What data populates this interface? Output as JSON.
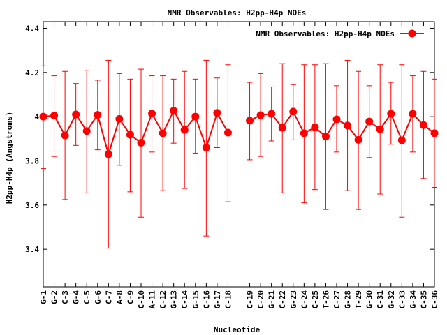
{
  "chart_data": {
    "type": "line",
    "title": "NMR Observables: H2pp-H4p NOEs",
    "xlabel": "Nucleotide",
    "ylabel": "H2pp-H4p (Angstroms)",
    "ylim": [
      3.23,
      4.43
    ],
    "yticks": [
      "3.4",
      "3.6",
      "3.8",
      "4",
      "4.2",
      "4.4"
    ],
    "grid": false,
    "legend_position": "top-right",
    "series_color": "#ff0000",
    "series": [
      {
        "name": "NMR Observables: H2pp-H4p NOEs",
        "segments": [
          {
            "categories": [
              "G-1",
              "G-2",
              "C-3",
              "G-4",
              "C-5",
              "G-6",
              "C-7",
              "A-8",
              "C-9",
              "C-10",
              "A-11",
              "C-12",
              "G-13",
              "C-14",
              "G-15",
              "C-16",
              "G-17",
              "C-18"
            ],
            "values": [
              4.0,
              4.005,
              3.915,
              4.01,
              3.935,
              4.008,
              3.83,
              3.99,
              3.918,
              3.882,
              4.014,
              3.925,
              4.027,
              3.94,
              4.0,
              3.86,
              4.017,
              3.928
            ],
            "err_low": [
              3.765,
              3.82,
              3.625,
              3.87,
              3.655,
              3.85,
              3.405,
              3.78,
              3.66,
              3.545,
              3.84,
              3.665,
              3.88,
              3.675,
              3.835,
              3.46,
              3.86,
              3.615
            ],
            "err_high": [
              4.23,
              4.185,
              4.205,
              4.15,
              4.21,
              4.165,
              4.255,
              4.195,
              4.17,
              4.215,
              4.185,
              4.185,
              4.17,
              4.205,
              4.17,
              4.255,
              4.175,
              4.235
            ]
          },
          {
            "categories": [
              "C-19",
              "C-20",
              "G-21",
              "C-22",
              "G-23",
              "C-24",
              "C-25",
              "T-26",
              "C-27",
              "G-28",
              "T-29",
              "G-30",
              "C-31",
              "G-32",
              "C-33",
              "G-34",
              "C-35",
              "C-36"
            ],
            "values": [
              3.982,
              4.007,
              4.013,
              3.95,
              4.023,
              3.925,
              3.952,
              3.91,
              3.988,
              3.96,
              3.895,
              3.978,
              3.943,
              4.013,
              3.893,
              4.013,
              3.962,
              3.925
            ],
            "err_low": [
              3.805,
              3.82,
              3.89,
              3.655,
              3.895,
              3.61,
              3.67,
              3.58,
              3.84,
              3.665,
              3.58,
              3.815,
              3.65,
              3.875,
              3.545,
              3.84,
              3.72,
              3.68
            ],
            "err_high": [
              4.155,
              4.195,
              4.135,
              4.24,
              4.145,
              4.235,
              4.235,
              4.24,
              4.14,
              4.255,
              4.205,
              4.14,
              4.235,
              4.155,
              4.235,
              4.185,
              4.205,
              4.17
            ]
          }
        ]
      }
    ]
  }
}
